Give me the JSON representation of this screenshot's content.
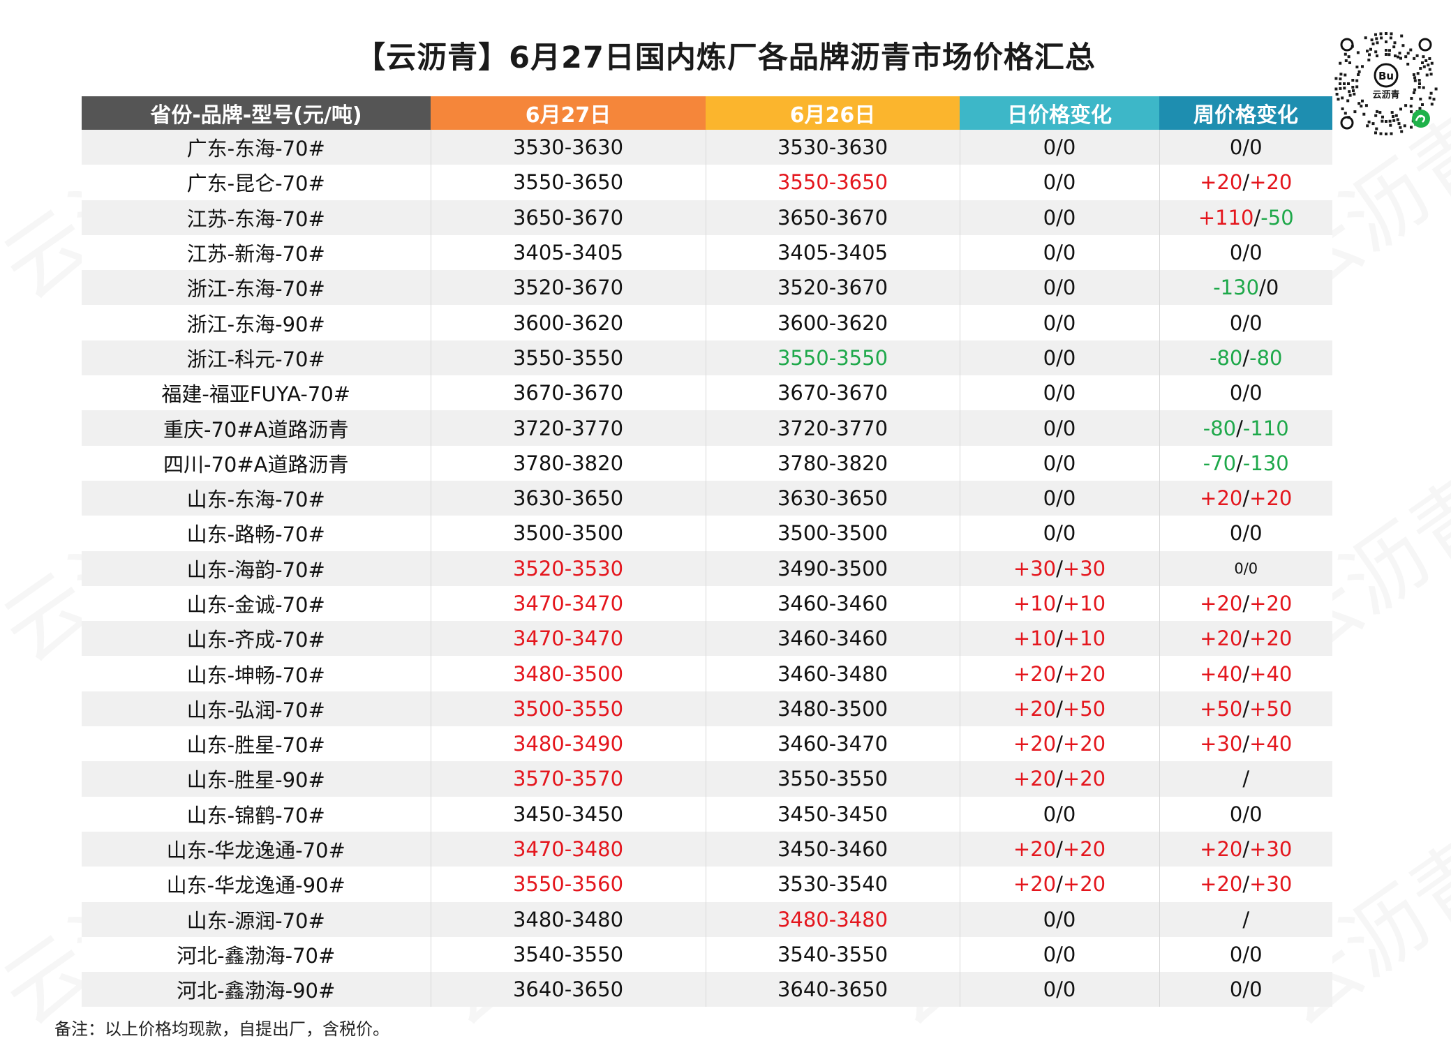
{
  "title": "【云沥青】6月27日国内炼厂各品牌沥青市场价格汇总",
  "logo": {
    "text": "云沥青"
  },
  "colors": {
    "header_col1": "#555555",
    "header_col2": "#f5863a",
    "header_col3": "#fbb52d",
    "header_col4": "#3db7c8",
    "header_col5": "#1e8eb0",
    "red": "#e4161d",
    "green": "#1ea84a",
    "black": "#111111"
  },
  "table": {
    "headers": [
      "省份-品牌-型号(元/吨)",
      "6月27日",
      "6月26日",
      "日价格变化",
      "周价格变化"
    ],
    "rows": [
      {
        "name": "广东-东海-70#",
        "d27": "3530-3630",
        "d26": "3530-3630",
        "day_a": "0",
        "day_b": "0",
        "week_a": "0",
        "week_b": "0",
        "c27": "k",
        "c26": "k",
        "cda": "k",
        "cdb": "k",
        "cwa": "k",
        "cwb": "k"
      },
      {
        "name": "广东-昆仑-70#",
        "d27": "3550-3650",
        "d26": "3550-3650",
        "day_a": "0",
        "day_b": "0",
        "week_a": "+20",
        "week_b": "+20",
        "c27": "k",
        "c26": "r",
        "cda": "k",
        "cdb": "k",
        "cwa": "r",
        "cwb": "r"
      },
      {
        "name": "江苏-东海-70#",
        "d27": "3650-3670",
        "d26": "3650-3670",
        "day_a": "0",
        "day_b": "0",
        "week_a": "+110",
        "week_b": "-50",
        "c27": "k",
        "c26": "k",
        "cda": "k",
        "cdb": "k",
        "cwa": "r",
        "cwb": "g"
      },
      {
        "name": "江苏-新海-70#",
        "d27": "3405-3405",
        "d26": "3405-3405",
        "day_a": "0",
        "day_b": "0",
        "week_a": "0",
        "week_b": "0",
        "c27": "k",
        "c26": "k",
        "cda": "k",
        "cdb": "k",
        "cwa": "k",
        "cwb": "k"
      },
      {
        "name": "浙江-东海-70#",
        "d27": "3520-3670",
        "d26": "3520-3670",
        "day_a": "0",
        "day_b": "0",
        "week_a": "-130",
        "week_b": "0",
        "c27": "k",
        "c26": "k",
        "cda": "k",
        "cdb": "k",
        "cwa": "g",
        "cwb": "k"
      },
      {
        "name": "浙江-东海-90#",
        "d27": "3600-3620",
        "d26": "3600-3620",
        "day_a": "0",
        "day_b": "0",
        "week_a": "0",
        "week_b": "0",
        "c27": "k",
        "c26": "k",
        "cda": "k",
        "cdb": "k",
        "cwa": "k",
        "cwb": "k"
      },
      {
        "name": "浙江-科元-70#",
        "d27": "3550-3550",
        "d26": "3550-3550",
        "day_a": "0",
        "day_b": "0",
        "week_a": "-80",
        "week_b": "-80",
        "c27": "k",
        "c26": "g",
        "cda": "k",
        "cdb": "k",
        "cwa": "g",
        "cwb": "g"
      },
      {
        "name": "福建-福亚FUYA-70#",
        "d27": "3670-3670",
        "d26": "3670-3670",
        "day_a": "0",
        "day_b": "0",
        "week_a": "0",
        "week_b": "0",
        "c27": "k",
        "c26": "k",
        "cda": "k",
        "cdb": "k",
        "cwa": "k",
        "cwb": "k"
      },
      {
        "name": "重庆-70#A道路沥青",
        "d27": "3720-3770",
        "d26": "3720-3770",
        "day_a": "0",
        "day_b": "0",
        "week_a": "-80",
        "week_b": "-110",
        "c27": "k",
        "c26": "k",
        "cda": "k",
        "cdb": "k",
        "cwa": "g",
        "cwb": "g"
      },
      {
        "name": "四川-70#A道路沥青",
        "d27": "3780-3820",
        "d26": "3780-3820",
        "day_a": "0",
        "day_b": "0",
        "week_a": "-70",
        "week_b": "-130",
        "c27": "k",
        "c26": "k",
        "cda": "k",
        "cdb": "k",
        "cwa": "g",
        "cwb": "g"
      },
      {
        "name": "山东-东海-70#",
        "d27": "3630-3650",
        "d26": "3630-3650",
        "day_a": "0",
        "day_b": "0",
        "week_a": "+20",
        "week_b": "+20",
        "c27": "k",
        "c26": "k",
        "cda": "k",
        "cdb": "k",
        "cwa": "r",
        "cwb": "r"
      },
      {
        "name": "山东-路畅-70#",
        "d27": "3500-3500",
        "d26": "3500-3500",
        "day_a": "0",
        "day_b": "0",
        "week_a": "0",
        "week_b": "0",
        "c27": "k",
        "c26": "k",
        "cda": "k",
        "cdb": "k",
        "cwa": "k",
        "cwb": "k"
      },
      {
        "name": "山东-海韵-70#",
        "d27": "3520-3530",
        "d26": "3490-3500",
        "day_a": "+30",
        "day_b": "+30",
        "week_a": "0",
        "week_b": "0",
        "c27": "r",
        "c26": "k",
        "cda": "r",
        "cdb": "r",
        "cwa": "k",
        "cwb": "k",
        "small_week": true
      },
      {
        "name": "山东-金诚-70#",
        "d27": "3470-3470",
        "d26": "3460-3460",
        "day_a": "+10",
        "day_b": "+10",
        "week_a": "+20",
        "week_b": "+20",
        "c27": "r",
        "c26": "k",
        "cda": "r",
        "cdb": "r",
        "cwa": "r",
        "cwb": "r"
      },
      {
        "name": "山东-齐成-70#",
        "d27": "3470-3470",
        "d26": "3460-3460",
        "day_a": "+10",
        "day_b": "+10",
        "week_a": "+20",
        "week_b": "+20",
        "c27": "r",
        "c26": "k",
        "cda": "r",
        "cdb": "r",
        "cwa": "r",
        "cwb": "r"
      },
      {
        "name": "山东-坤畅-70#",
        "d27": "3480-3500",
        "d26": "3460-3480",
        "day_a": "+20",
        "day_b": "+20",
        "week_a": "+40",
        "week_b": "+40",
        "c27": "r",
        "c26": "k",
        "cda": "r",
        "cdb": "r",
        "cwa": "r",
        "cwb": "r"
      },
      {
        "name": "山东-弘润-70#",
        "d27": "3500-3550",
        "d26": "3480-3500",
        "day_a": "+20",
        "day_b": "+50",
        "week_a": "+50",
        "week_b": "+50",
        "c27": "r",
        "c26": "k",
        "cda": "r",
        "cdb": "r",
        "cwa": "r",
        "cwb": "r"
      },
      {
        "name": "山东-胜星-70#",
        "d27": "3480-3490",
        "d26": "3460-3470",
        "day_a": "+20",
        "day_b": "+20",
        "week_a": "+30",
        "week_b": "+40",
        "c27": "r",
        "c26": "k",
        "cda": "r",
        "cdb": "r",
        "cwa": "r",
        "cwb": "r"
      },
      {
        "name": "山东-胜星-90#",
        "d27": "3570-3570",
        "d26": "3550-3550",
        "day_a": "+20",
        "day_b": "+20",
        "week_single": "/",
        "c27": "r",
        "c26": "k",
        "cda": "r",
        "cdb": "r",
        "cwa": "k",
        "cwb": "k"
      },
      {
        "name": "山东-锦鹤-70#",
        "d27": "3450-3450",
        "d26": "3450-3450",
        "day_a": "0",
        "day_b": "0",
        "week_a": "0",
        "week_b": "0",
        "c27": "k",
        "c26": "k",
        "cda": "k",
        "cdb": "k",
        "cwa": "k",
        "cwb": "k"
      },
      {
        "name": "山东-华龙逸通-70#",
        "d27": "3470-3480",
        "d26": "3450-3460",
        "day_a": "+20",
        "day_b": "+20",
        "week_a": "+20",
        "week_b": "+30",
        "c27": "r",
        "c26": "k",
        "cda": "r",
        "cdb": "r",
        "cwa": "r",
        "cwb": "r"
      },
      {
        "name": "山东-华龙逸通-90#",
        "d27": "3550-3560",
        "d26": "3530-3540",
        "day_a": "+20",
        "day_b": "+20",
        "week_a": "+20",
        "week_b": "+30",
        "c27": "r",
        "c26": "k",
        "cda": "r",
        "cdb": "r",
        "cwa": "r",
        "cwb": "r"
      },
      {
        "name": "山东-源润-70#",
        "d27": "3480-3480",
        "d26": "3480-3480",
        "day_a": "0",
        "day_b": "0",
        "week_single": "/",
        "c27": "k",
        "c26": "r",
        "cda": "k",
        "cdb": "k",
        "cwa": "k",
        "cwb": "k"
      },
      {
        "name": "河北-鑫渤海-70#",
        "d27": "3540-3550",
        "d26": "3540-3550",
        "day_a": "0",
        "day_b": "0",
        "week_a": "0",
        "week_b": "0",
        "c27": "k",
        "c26": "k",
        "cda": "k",
        "cdb": "k",
        "cwa": "k",
        "cwb": "k"
      },
      {
        "name": "河北-鑫渤海-90#",
        "d27": "3640-3650",
        "d26": "3640-3650",
        "day_a": "0",
        "day_b": "0",
        "week_a": "0",
        "week_b": "0",
        "c27": "k",
        "c26": "k",
        "cda": "k",
        "cdb": "k",
        "cwa": "k",
        "cwb": "k"
      }
    ]
  },
  "note": "备注：以上价格均现款，自提出厂，含税价。"
}
